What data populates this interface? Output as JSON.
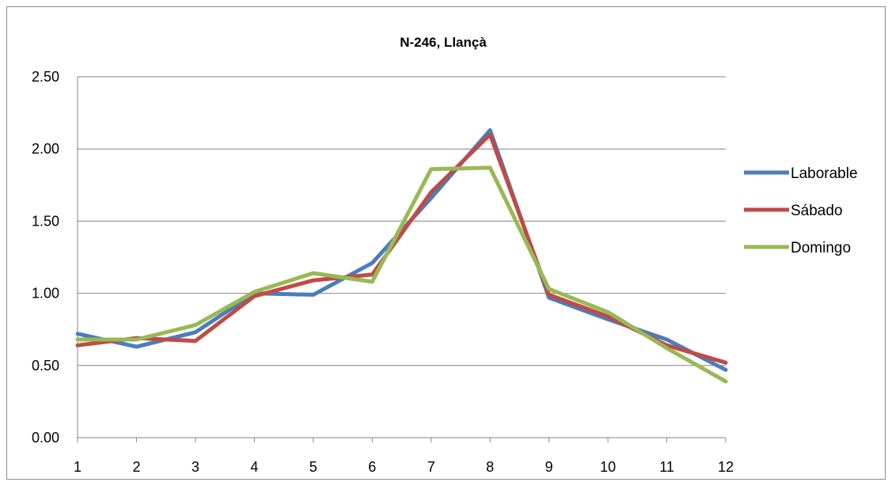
{
  "chart_data": {
    "type": "line",
    "title": "N-246, Llançà",
    "xlabel": "",
    "ylabel": "",
    "x": [
      1,
      2,
      3,
      4,
      5,
      6,
      7,
      8,
      9,
      10,
      11,
      12
    ],
    "x_tick_labels": [
      "1",
      "2",
      "3",
      "4",
      "5",
      "6",
      "7",
      "8",
      "9",
      "10",
      "11",
      "12"
    ],
    "y_tick_labels": [
      "0.00",
      "0.50",
      "1.00",
      "1.50",
      "2.00",
      "2.50"
    ],
    "ylim": [
      0,
      2.5
    ],
    "grid": true,
    "legend_position": "right",
    "series": [
      {
        "name": "Laborable",
        "color": "#4a7ebb",
        "values": [
          0.72,
          0.63,
          0.73,
          1.0,
          0.99,
          1.21,
          1.66,
          2.13,
          0.97,
          0.82,
          0.68,
          0.47
        ]
      },
      {
        "name": "Sábado",
        "color": "#be4b48",
        "values": [
          0.64,
          0.69,
          0.67,
          0.98,
          1.09,
          1.13,
          1.7,
          2.1,
          0.99,
          0.84,
          0.64,
          0.52
        ]
      },
      {
        "name": "Domingo",
        "color": "#98b954",
        "values": [
          0.68,
          0.68,
          0.78,
          1.01,
          1.14,
          1.08,
          1.86,
          1.87,
          1.03,
          0.87,
          0.62,
          0.39
        ]
      }
    ]
  }
}
